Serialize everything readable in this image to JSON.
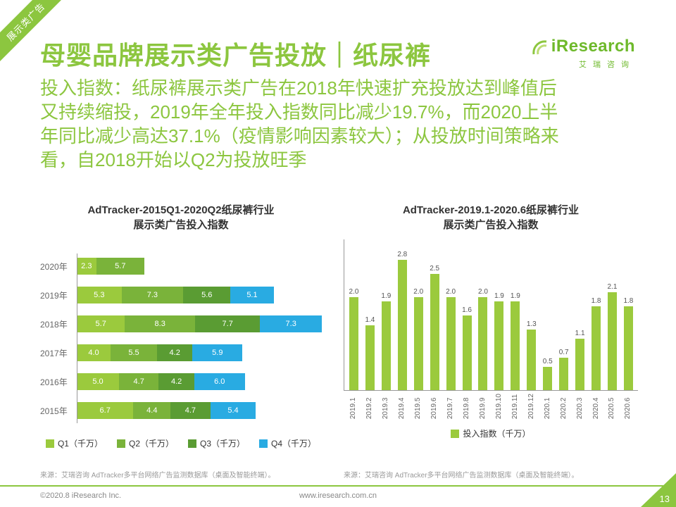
{
  "ribbon": {
    "label": "展示类广告"
  },
  "header": {
    "title": "母婴品牌展示类广告投放｜纸尿裤",
    "logo": {
      "name": "iResearch",
      "subtitle": "艾瑞咨询"
    }
  },
  "summary_lines": [
    "投入指数：纸尿裤展示类广告在2018年快速扩充投放达到峰值后",
    "又持续缩投，2019年全年投入指数同比减少19.7%，而2020上半",
    "年同比减少高达37.1%（疫情影响因素较大）；从投放时间策略来",
    "看，自2018开始以Q2为投放旺季"
  ],
  "colors": {
    "accent": "#8cc63f",
    "q1": "#9bca3d",
    "q2": "#7ab33a",
    "q3": "#5a9c33",
    "q4": "#29abe2",
    "bar": "#9bca3d"
  },
  "chart_data": [
    {
      "type": "bar",
      "orientation": "horizontal-stacked",
      "title": "AdTracker-2015Q1-2020Q2纸尿裤行业展示类广告投入指数",
      "title_lines": [
        "AdTracker-2015Q1-2020Q2纸尿裤行业",
        "展示类广告投入指数"
      ],
      "categories": [
        "2020年",
        "2019年",
        "2018年",
        "2017年",
        "2016年",
        "2015年"
      ],
      "series": [
        {
          "name": "Q1（千万）",
          "values": [
            2.3,
            5.3,
            5.7,
            4.0,
            5.0,
            6.7
          ]
        },
        {
          "name": "Q2（千万）",
          "values": [
            5.7,
            7.3,
            8.3,
            5.5,
            4.7,
            4.4
          ]
        },
        {
          "name": "Q3（千万）",
          "values": [
            null,
            5.6,
            7.7,
            4.2,
            4.2,
            4.7
          ]
        },
        {
          "name": "Q4（千万）",
          "values": [
            null,
            5.1,
            7.3,
            5.9,
            6.0,
            5.4
          ]
        }
      ],
      "unit": "千万",
      "xlim": [
        0,
        29
      ],
      "grid": false,
      "legend_position": "bottom"
    },
    {
      "type": "bar",
      "orientation": "vertical",
      "title": "AdTracker-2019.1-2020.6纸尿裤行业展示类广告投入指数",
      "title_lines": [
        "AdTracker-2019.1-2020.6纸尿裤行业",
        "展示类广告投入指数"
      ],
      "categories": [
        "2019.1",
        "2019.2",
        "2019.3",
        "2019.4",
        "2019.5",
        "2019.6",
        "2019.7",
        "2019.8",
        "2019.9",
        "2019.10",
        "2019.11",
        "2019.12",
        "2020.1",
        "2020.2",
        "2020.3",
        "2020.4",
        "2020.5",
        "2020.6"
      ],
      "values": [
        2.0,
        1.4,
        1.9,
        2.8,
        2.0,
        2.5,
        2.0,
        1.6,
        2.0,
        1.9,
        1.9,
        1.3,
        0.5,
        0.7,
        1.1,
        1.8,
        2.1,
        1.8
      ],
      "legend": "投入指数（千万）",
      "unit": "千万",
      "ylim": [
        0,
        2.8
      ],
      "grid": false,
      "legend_position": "bottom"
    }
  ],
  "sources": {
    "left": "来源：艾瑞咨询 AdTracker多平台网络广告监测数据库（桌面及智能终端）。",
    "right": "来源：艾瑞咨询 AdTracker多平台网络广告监测数据库（桌面及智能终端）。"
  },
  "footer": {
    "copyright": "©2020.8 iResearch Inc.",
    "url": "www.iresearch.com.cn",
    "page": "13"
  }
}
